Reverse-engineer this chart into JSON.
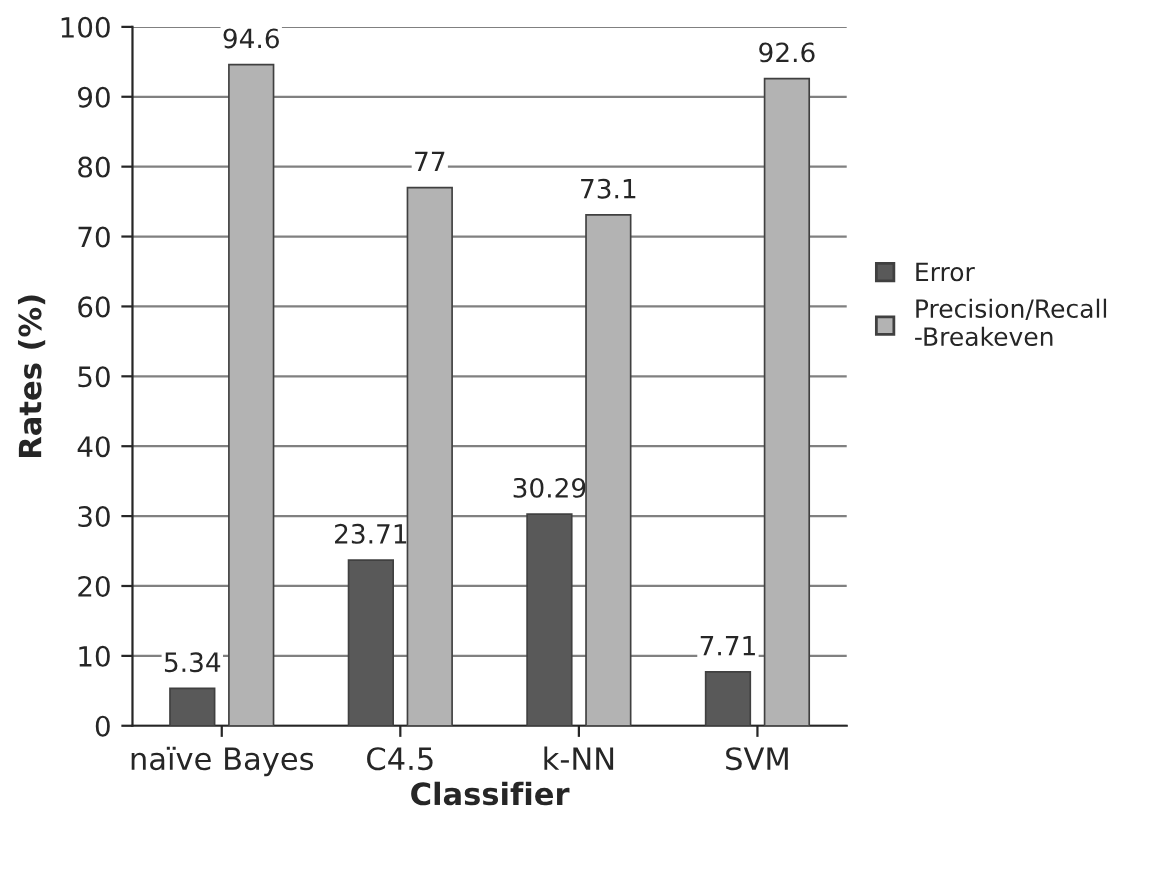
{
  "chart_data": {
    "type": "bar",
    "xlabel": "Classifier",
    "ylabel": "Rates (%)",
    "categories": [
      "naïve Bayes",
      "C4.5",
      "k-NN",
      "SVM"
    ],
    "series": [
      {
        "name": "Error",
        "color": "#595959",
        "values": [
          5.34,
          23.71,
          30.29,
          7.71
        ]
      },
      {
        "name": "Precision/Recall\n-Breakeven",
        "color": "#b3b3b3",
        "values": [
          94.6,
          77,
          73.1,
          92.6
        ]
      }
    ],
    "ylim": [
      0,
      100
    ],
    "yticks": [
      0,
      10,
      20,
      30,
      40,
      50,
      60,
      70,
      80,
      90,
      100
    ],
    "grid": "y",
    "legend": "right",
    "data_labels": true
  }
}
